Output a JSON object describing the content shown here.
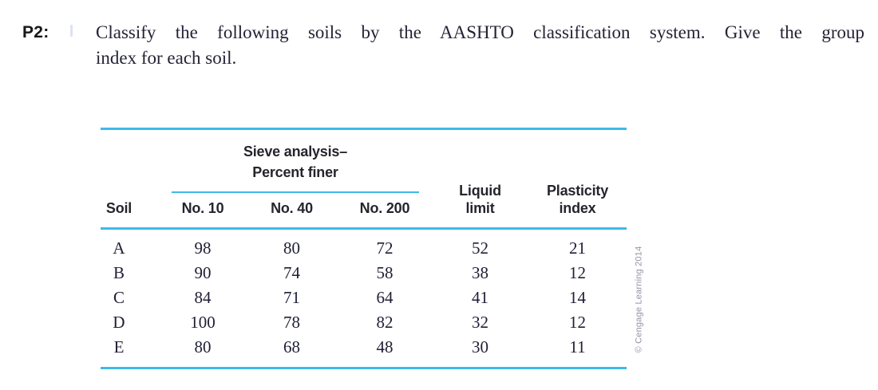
{
  "colors": {
    "rule_accent": "#3eb9e9",
    "heading_text": "#25252d",
    "body_text": "#202036",
    "credit_text": "#9095a3"
  },
  "problem": {
    "label": "P2:",
    "statement_line1": "Classify the following soils by the AASHTO classification system. Give the group",
    "statement_line2": "index for each soil."
  },
  "table": {
    "column_group": {
      "title_line1": "Sieve analysis–",
      "title_line2": "Percent finer"
    },
    "headers": {
      "soil": "Soil",
      "no10": "No. 10",
      "no40": "No. 40",
      "no200": "No. 200",
      "liquid_line1": "Liquid",
      "liquid_line2": "limit",
      "plasticity_line1": "Plasticity",
      "plasticity_line2": "index"
    },
    "rows": [
      {
        "soil": "A",
        "no10": "98",
        "no40": "80",
        "no200": "72",
        "liquid_limit": "52",
        "plasticity_index": "21"
      },
      {
        "soil": "B",
        "no10": "90",
        "no40": "74",
        "no200": "58",
        "liquid_limit": "38",
        "plasticity_index": "12"
      },
      {
        "soil": "C",
        "no10": "84",
        "no40": "71",
        "no200": "64",
        "liquid_limit": "41",
        "plasticity_index": "14"
      },
      {
        "soil": "D",
        "no10": "100",
        "no40": "78",
        "no200": "82",
        "liquid_limit": "32",
        "plasticity_index": "12"
      },
      {
        "soil": "E",
        "no10": "80",
        "no40": "68",
        "no200": "48",
        "liquid_limit": "30",
        "plasticity_index": "11"
      }
    ]
  },
  "credit": "© Cengage Learning 2014"
}
